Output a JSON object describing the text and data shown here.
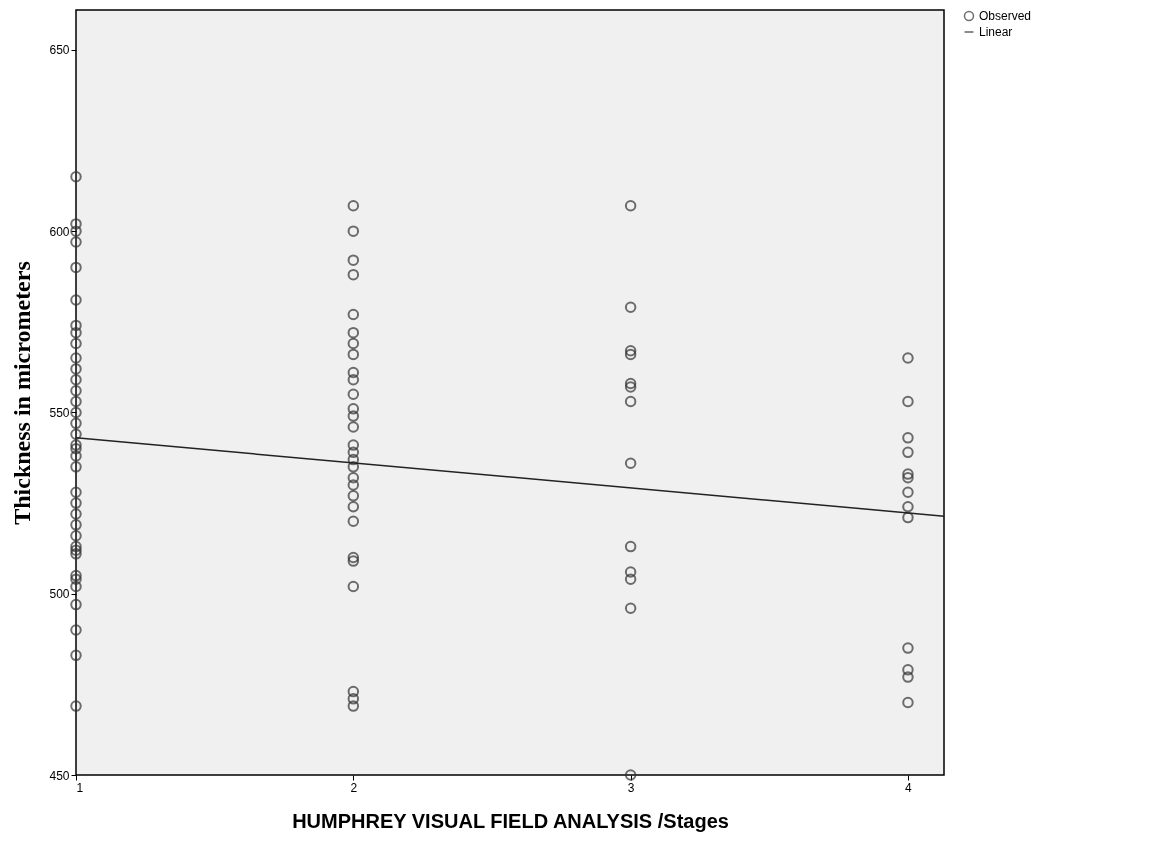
{
  "chart_data": {
    "type": "scatter",
    "xlabel": "HUMPHREY VISUAL FIELD ANALYSIS /Stages",
    "ylabel": "Thickness in micrometers",
    "xlim": [
      1,
      4.13
    ],
    "ylim": [
      450,
      661
    ],
    "xticks": [
      1,
      2,
      3,
      4
    ],
    "yticks": [
      450,
      500,
      550,
      600,
      650
    ],
    "grid": false,
    "legend": "top right",
    "series": [
      {
        "name": "Observed",
        "marker": "circle",
        "color": "#333333",
        "x": [
          1,
          1,
          1,
          1,
          1,
          1,
          1,
          1,
          1,
          1,
          1,
          1,
          1,
          1,
          1,
          1,
          1,
          1,
          1,
          1,
          1,
          1,
          1,
          1,
          1,
          1,
          1,
          1,
          1,
          1,
          1,
          1,
          1,
          1,
          1,
          1,
          2,
          2,
          2,
          2,
          2,
          2,
          2,
          2,
          2,
          2,
          2,
          2,
          2,
          2,
          2,
          2,
          2,
          2,
          2,
          2,
          2,
          2,
          2,
          2,
          2,
          2,
          2,
          2,
          2,
          3,
          3,
          3,
          3,
          3,
          3,
          3,
          3,
          3,
          3,
          3,
          3,
          3,
          4,
          4,
          4,
          4,
          4,
          4,
          4,
          4,
          4,
          4,
          4,
          4,
          4
        ],
        "values": [
          615,
          602,
          600,
          597,
          590,
          581,
          574,
          572,
          569,
          565,
          562,
          559,
          556,
          553,
          550,
          547,
          544,
          541,
          540,
          538,
          535,
          528,
          525,
          522,
          519,
          516,
          513,
          512,
          511,
          505,
          504,
          502,
          497,
          490,
          483,
          469,
          607,
          600,
          592,
          588,
          577,
          572,
          569,
          566,
          561,
          559,
          555,
          551,
          549,
          546,
          541,
          539,
          537,
          535,
          532,
          530,
          527,
          524,
          520,
          510,
          509,
          502,
          473,
          471,
          469,
          607,
          579,
          567,
          566,
          558,
          557,
          553,
          536,
          513,
          506,
          504,
          496,
          450,
          565,
          553,
          543,
          539,
          533,
          532,
          528,
          524,
          521,
          485,
          479,
          477,
          470
        ]
      },
      {
        "name": "Linear",
        "type": "line",
        "color": "#222222",
        "line_style": "solid",
        "x": [
          1,
          4.13
        ],
        "values": [
          543,
          521.4
        ]
      }
    ]
  }
}
